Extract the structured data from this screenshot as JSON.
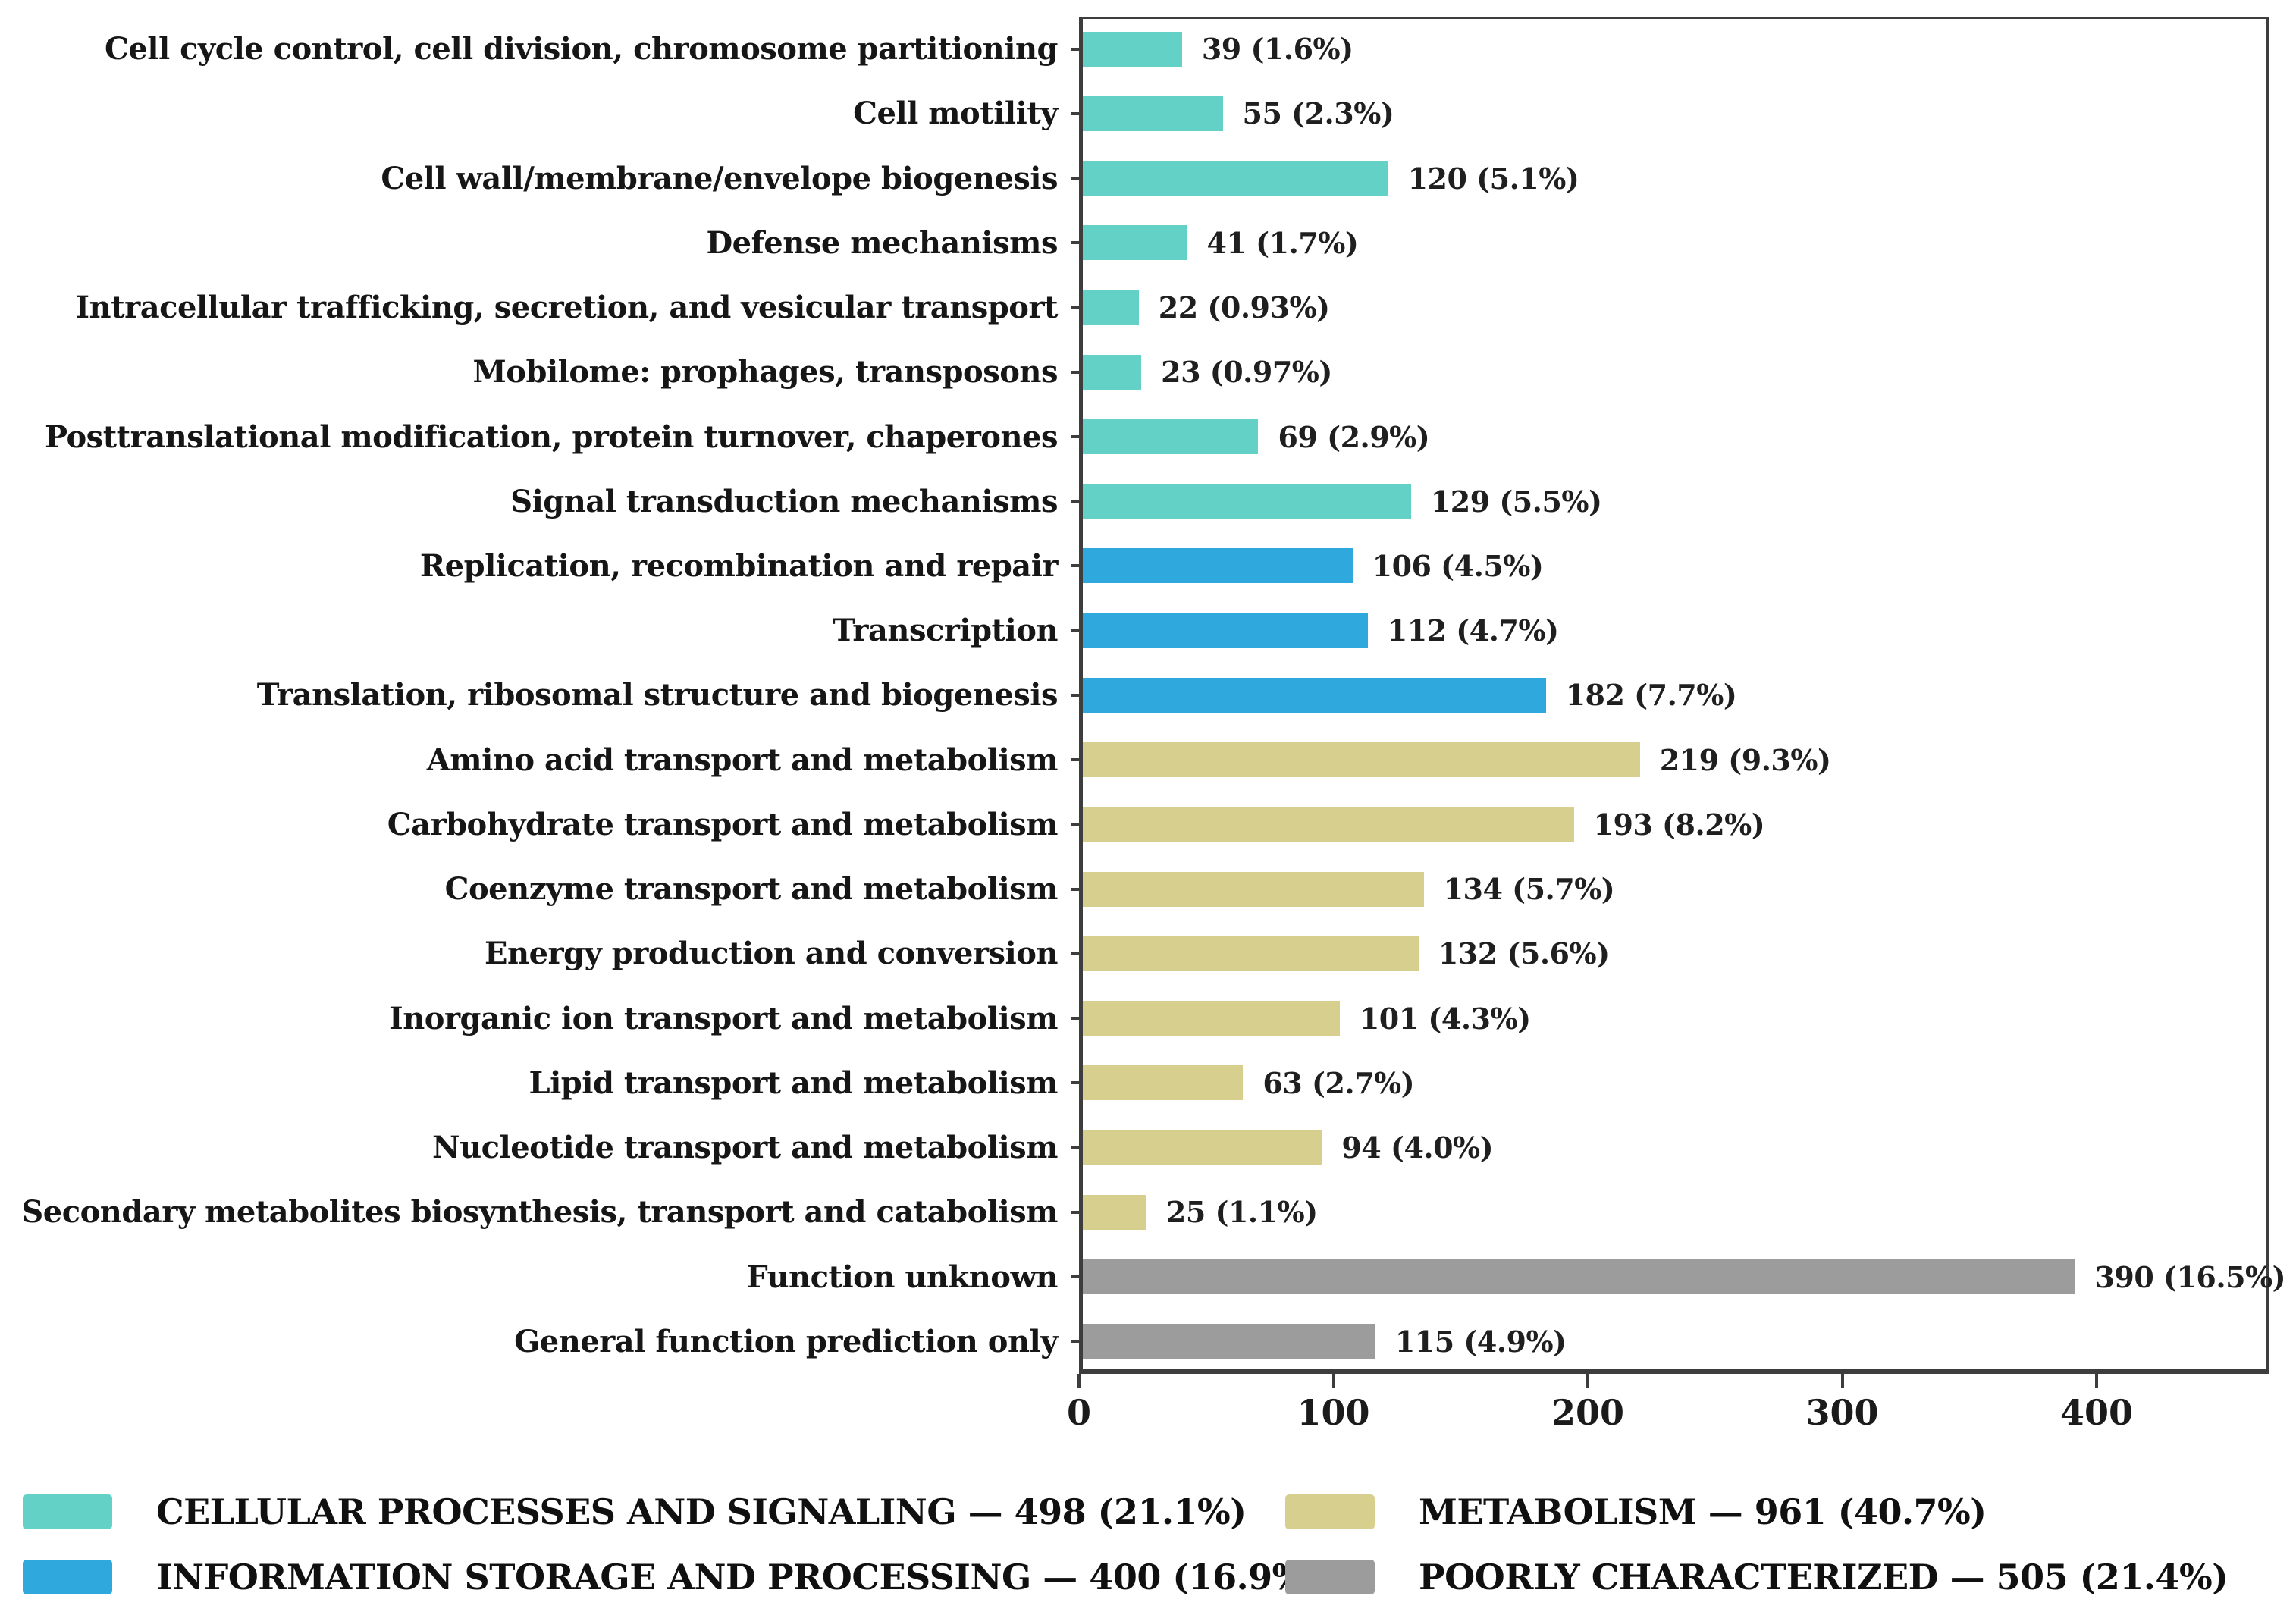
{
  "figure": {
    "background": "#ffffff",
    "frame_color": "#3d3d3d"
  },
  "chart_data": {
    "type": "bar",
    "orientation": "horizontal",
    "title": "",
    "xlabel": "",
    "ylabel": "",
    "grid": false,
    "x_axis": {
      "range": [
        0,
        467
      ],
      "ticks": [
        0,
        100,
        200,
        300,
        400
      ],
      "tick_labels": [
        "0",
        "100",
        "200",
        "300",
        "400"
      ]
    },
    "bars": [
      {
        "category": "Cell cycle control, cell division, chromosome partitioning",
        "value": 39,
        "pct": "1.6%",
        "label": "39 (1.6%)",
        "group": "cellular"
      },
      {
        "category": "Cell motility",
        "value": 55,
        "pct": "2.3%",
        "label": "55 (2.3%)",
        "group": "cellular"
      },
      {
        "category": "Cell wall/membrane/envelope biogenesis",
        "value": 120,
        "pct": "5.1%",
        "label": "120 (5.1%)",
        "group": "cellular"
      },
      {
        "category": "Defense mechanisms",
        "value": 41,
        "pct": "1.7%",
        "label": "41 (1.7%)",
        "group": "cellular"
      },
      {
        "category": "Intracellular trafficking, secretion, and vesicular transport",
        "value": 22,
        "pct": "0.93%",
        "label": "22 (0.93%)",
        "group": "cellular"
      },
      {
        "category": "Mobilome: prophages, transposons",
        "value": 23,
        "pct": "0.97%",
        "label": "23 (0.97%)",
        "group": "cellular"
      },
      {
        "category": "Posttranslational modification, protein turnover, chaperones",
        "value": 69,
        "pct": "2.9%",
        "label": "69 (2.9%)",
        "group": "cellular"
      },
      {
        "category": "Signal transduction mechanisms",
        "value": 129,
        "pct": "5.5%",
        "label": "129 (5.5%)",
        "group": "cellular"
      },
      {
        "category": "Replication, recombination and repair",
        "value": 106,
        "pct": "4.5%",
        "label": "106 (4.5%)",
        "group": "information"
      },
      {
        "category": "Transcription",
        "value": 112,
        "pct": "4.7%",
        "label": "112 (4.7%)",
        "group": "information"
      },
      {
        "category": "Translation, ribosomal structure and biogenesis",
        "value": 182,
        "pct": "7.7%",
        "label": "182 (7.7%)",
        "group": "information"
      },
      {
        "category": "Amino acid transport and metabolism",
        "value": 219,
        "pct": "9.3%",
        "label": "219 (9.3%)",
        "group": "metabolism"
      },
      {
        "category": "Carbohydrate transport and metabolism",
        "value": 193,
        "pct": "8.2%",
        "label": "193 (8.2%)",
        "group": "metabolism"
      },
      {
        "category": "Coenzyme transport and metabolism",
        "value": 134,
        "pct": "5.7%",
        "label": "134 (5.7%)",
        "group": "metabolism"
      },
      {
        "category": "Energy production and conversion",
        "value": 132,
        "pct": "5.6%",
        "label": "132 (5.6%)",
        "group": "metabolism"
      },
      {
        "category": "Inorganic ion transport and metabolism",
        "value": 101,
        "pct": "4.3%",
        "label": "101 (4.3%)",
        "group": "metabolism"
      },
      {
        "category": "Lipid transport and metabolism",
        "value": 63,
        "pct": "2.7%",
        "label": "63 (2.7%)",
        "group": "metabolism"
      },
      {
        "category": "Nucleotide transport and metabolism",
        "value": 94,
        "pct": "4.0%",
        "label": "94 (4.0%)",
        "group": "metabolism"
      },
      {
        "category": "Secondary metabolites biosynthesis, transport and catabolism",
        "value": 25,
        "pct": "1.1%",
        "label": "25 (1.1%)",
        "group": "metabolism"
      },
      {
        "category": "Function unknown",
        "value": 390,
        "pct": "16.5%",
        "label": "390 (16.5%)",
        "group": "poorly"
      },
      {
        "category": "General function prediction only",
        "value": 115,
        "pct": "4.9%",
        "label": "115 (4.9%)",
        "group": "poorly"
      }
    ],
    "legend": {
      "position": "bottom",
      "columns": [
        [
          "cellular",
          "information"
        ],
        [
          "metabolism",
          "poorly"
        ]
      ],
      "groups": {
        "cellular": {
          "label": "CELLULAR PROCESSES AND SIGNALING",
          "total": 498,
          "pct": "21.1%",
          "color": "#63d1c5",
          "text": "CELLULAR PROCESSES AND SIGNALING — 498 (21.1%)"
        },
        "information": {
          "label": "INFORMATION STORAGE AND PROCESSING",
          "total": 400,
          "pct": "16.9%",
          "color": "#2fa8de",
          "text": "INFORMATION STORAGE AND PROCESSING — 400 (16.9%)"
        },
        "metabolism": {
          "label": "METABOLISM",
          "total": 961,
          "pct": "40.7%",
          "color": "#d7cf8e",
          "text": "METABOLISM — 961 (40.7%)"
        },
        "poorly": {
          "label": "POORLY CHARACTERIZED",
          "total": 505,
          "pct": "21.4%",
          "color": "#9c9c9c",
          "text": "POORLY CHARACTERIZED — 505 (21.4%)"
        }
      }
    }
  }
}
